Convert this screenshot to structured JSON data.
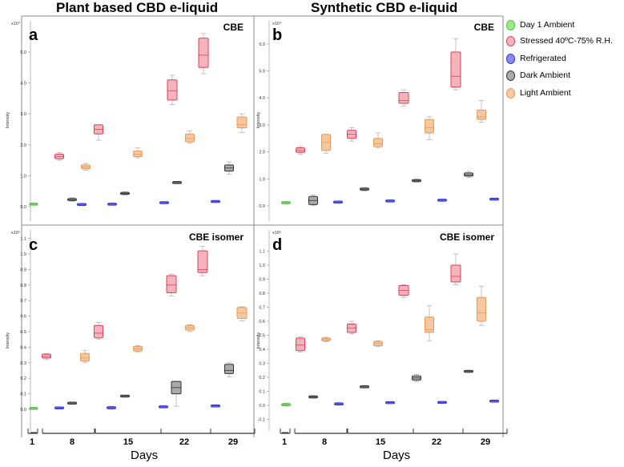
{
  "titles": {
    "left": "Plant based CBD e-liquid",
    "right": "Synthetic CBD e-liquid"
  },
  "legend": [
    {
      "label": "Day 1 Ambient",
      "color": "#9be88d",
      "edge": "#55bb44"
    },
    {
      "label": "Stressed 40ºC-75% R.H.",
      "color": "#f4b3bd",
      "edge": "#d94357"
    },
    {
      "label": "Refrigerated",
      "color": "#8a8cf0",
      "edge": "#3333dd"
    },
    {
      "label": "Dark Ambient",
      "color": "#aaaaaa",
      "edge": "#333333"
    },
    {
      "label": "Light Ambient",
      "color": "#f8c7a0",
      "edge": "#e59a5a"
    }
  ],
  "xaxis": {
    "label": "Days",
    "groups": [
      "1",
      "8",
      "15",
      "22",
      "29"
    ]
  },
  "chart_data": [
    {
      "type": "box",
      "panel": "a",
      "title": "CBE",
      "exponent": "x10⁴",
      "ylabel": "Intensity",
      "ylim": [
        -0.3,
        5.9
      ],
      "yticks": [
        0,
        1,
        2,
        3,
        4,
        5
      ],
      "ytick_labels": [
        "0.0",
        "1.0",
        "2.0",
        "3.0",
        "4.0",
        "5.0"
      ],
      "boxes": [
        {
          "day": "1",
          "series": "Day 1 Ambient",
          "whisker_low": 0.05,
          "q1": 0.07,
          "median": 0.08,
          "q3": 0.09,
          "whisker_high": 0.1
        },
        {
          "day": "8",
          "series": "Stressed 40ºC-75% R.H.",
          "whisker_low": 1.5,
          "q1": 1.55,
          "median": 1.62,
          "q3": 1.7,
          "whisker_high": 1.75
        },
        {
          "day": "8",
          "series": "Refrigerated",
          "whisker_low": 0.05,
          "q1": 0.06,
          "median": 0.07,
          "q3": 0.08,
          "whisker_high": 0.09
        },
        {
          "day": "8",
          "series": "Dark Ambient",
          "whisker_low": 0.17,
          "q1": 0.2,
          "median": 0.23,
          "q3": 0.26,
          "whisker_high": 0.29
        },
        {
          "day": "8",
          "series": "Light Ambient",
          "whisker_low": 1.18,
          "q1": 1.22,
          "median": 1.28,
          "q3": 1.35,
          "whisker_high": 1.4
        },
        {
          "day": "15",
          "series": "Stressed 40ºC-75% R.H.",
          "whisker_low": 2.15,
          "q1": 2.25,
          "median": 2.5,
          "q3": 2.55,
          "whisker_high": 2.6
        },
        {
          "day": "15",
          "series": "Refrigerated",
          "whisker_low": 0.06,
          "q1": 0.07,
          "median": 0.08,
          "q3": 0.09,
          "whisker_high": 0.1
        },
        {
          "day": "15",
          "series": "Dark Ambient",
          "whisker_low": 0.38,
          "q1": 0.4,
          "median": 0.43,
          "q3": 0.46,
          "whisker_high": 0.48
        },
        {
          "day": "15",
          "series": "Light Ambient",
          "whisker_low": 1.58,
          "q1": 1.62,
          "median": 1.7,
          "q3": 1.8,
          "whisker_high": 1.9
        },
        {
          "day": "22",
          "series": "Stressed 40ºC-75% R.H.",
          "whisker_low": 3.3,
          "q1": 3.45,
          "median": 3.75,
          "q3": 4.1,
          "whisker_high": 4.25
        },
        {
          "day": "22",
          "series": "Refrigerated",
          "whisker_low": 0.11,
          "q1": 0.12,
          "median": 0.13,
          "q3": 0.14,
          "whisker_high": 0.15
        },
        {
          "day": "22",
          "series": "Dark Ambient",
          "whisker_low": 0.74,
          "q1": 0.76,
          "median": 0.78,
          "q3": 0.8,
          "whisker_high": 0.82
        },
        {
          "day": "22",
          "series": "Light Ambient",
          "whisker_low": 2.05,
          "q1": 2.1,
          "median": 2.2,
          "q3": 2.35,
          "whisker_high": 2.45
        },
        {
          "day": "29",
          "series": "Stressed 40ºC-75% R.H.",
          "whisker_low": 4.3,
          "q1": 4.5,
          "median": 4.9,
          "q3": 5.45,
          "whisker_high": 5.6
        },
        {
          "day": "29",
          "series": "Refrigerated",
          "whisker_low": 0.15,
          "q1": 0.16,
          "median": 0.17,
          "q3": 0.18,
          "whisker_high": 0.19
        },
        {
          "day": "29",
          "series": "Dark Ambient",
          "whisker_low": 1.05,
          "q1": 1.15,
          "median": 1.25,
          "q3": 1.35,
          "whisker_high": 1.45
        },
        {
          "day": "29",
          "series": "Light Ambient",
          "whisker_low": 2.4,
          "q1": 2.55,
          "median": 2.65,
          "q3": 2.9,
          "whisker_high": 3.0
        }
      ]
    },
    {
      "type": "box",
      "panel": "b",
      "title": "CBE",
      "exponent": "x10⁴",
      "ylabel": "Intensity",
      "ylim": [
        -0.35,
        6.7
      ],
      "yticks": [
        0,
        1,
        2,
        3,
        4,
        5,
        6
      ],
      "ytick_labels": [
        "0.0",
        "1.0",
        "2.0",
        "3.0",
        "4.0",
        "5.0",
        "6.0"
      ],
      "boxes": [
        {
          "day": "1",
          "series": "Day 1 Ambient",
          "whisker_low": 0.08,
          "q1": 0.1,
          "median": 0.12,
          "q3": 0.14,
          "whisker_high": 0.16
        },
        {
          "day": "8",
          "series": "Stressed 40ºC-75% R.H.",
          "whisker_low": 1.9,
          "q1": 1.98,
          "median": 2.05,
          "q3": 2.15,
          "whisker_high": 2.2
        },
        {
          "day": "8",
          "series": "Dark Ambient",
          "whisker_low": 0.02,
          "q1": 0.05,
          "median": 0.2,
          "q3": 0.35,
          "whisker_high": 0.4
        },
        {
          "day": "8",
          "series": "Refrigerated",
          "whisker_low": 0.12,
          "q1": 0.13,
          "median": 0.14,
          "q3": 0.15,
          "whisker_high": 0.16
        },
        {
          "day": "8",
          "series": "Light Ambient",
          "whisker_low": 1.95,
          "q1": 2.0,
          "median": 2.35,
          "q3": 2.6,
          "whisker_high": 2.65
        },
        {
          "day": "15",
          "series": "Stressed 40ºC-75% R.H.",
          "whisker_low": 2.4,
          "q1": 2.5,
          "median": 2.65,
          "q3": 2.8,
          "whisker_high": 2.9
        },
        {
          "day": "15",
          "series": "Dark Ambient",
          "whisker_low": 0.55,
          "q1": 0.58,
          "median": 0.62,
          "q3": 0.65,
          "whisker_high": 0.68
        },
        {
          "day": "15",
          "series": "Refrigerated",
          "whisker_low": 0.16,
          "q1": 0.17,
          "median": 0.18,
          "q3": 0.19,
          "whisker_high": 0.2
        },
        {
          "day": "15",
          "series": "Light Ambient",
          "whisker_low": 2.15,
          "q1": 2.2,
          "median": 2.3,
          "q3": 2.5,
          "whisker_high": 2.7
        },
        {
          "day": "22",
          "series": "Stressed 40ºC-75% R.H.",
          "whisker_low": 3.7,
          "q1": 3.8,
          "median": 3.9,
          "q3": 4.2,
          "whisker_high": 4.3
        },
        {
          "day": "22",
          "series": "Dark Ambient",
          "whisker_low": 0.88,
          "q1": 0.9,
          "median": 0.93,
          "q3": 0.97,
          "whisker_high": 1.0
        },
        {
          "day": "22",
          "series": "Refrigerated",
          "whisker_low": 0.19,
          "q1": 0.2,
          "median": 0.21,
          "q3": 0.22,
          "whisker_high": 0.23
        },
        {
          "day": "22",
          "series": "Light Ambient",
          "whisker_low": 2.45,
          "q1": 2.7,
          "median": 2.9,
          "q3": 3.2,
          "whisker_high": 3.3
        },
        {
          "day": "29",
          "series": "Stressed 40ºC-75% R.H.",
          "whisker_low": 4.3,
          "q1": 4.4,
          "median": 4.8,
          "q3": 5.7,
          "whisker_high": 6.2
        },
        {
          "day": "29",
          "series": "Dark Ambient",
          "whisker_low": 1.05,
          "q1": 1.1,
          "median": 1.15,
          "q3": 1.22,
          "whisker_high": 1.28
        },
        {
          "day": "29",
          "series": "Refrigerated",
          "whisker_low": 0.23,
          "q1": 0.24,
          "median": 0.25,
          "q3": 0.26,
          "whisker_high": 0.27
        },
        {
          "day": "29",
          "series": "Light Ambient",
          "whisker_low": 3.1,
          "q1": 3.2,
          "median": 3.3,
          "q3": 3.55,
          "whisker_high": 3.9
        }
      ]
    },
    {
      "type": "box",
      "panel": "c",
      "title": "CBE isomer",
      "exponent": "x10⁵",
      "ylabel": "Intensity",
      "ylim": [
        -0.06,
        1.17
      ],
      "yticks": [
        0,
        0.1,
        0.2,
        0.3,
        0.4,
        0.5,
        0.6,
        0.7,
        0.8,
        0.9,
        1.0,
        1.1
      ],
      "ytick_labels": [
        "0.0",
        "0.1",
        "0.2",
        "0.3",
        "0.4",
        "0.5",
        "0.6",
        "0.7",
        "0.8",
        "0.9",
        "1.0",
        "1.1"
      ],
      "boxes": [
        {
          "day": "1",
          "series": "Day 1 Ambient",
          "whisker_low": 0.002,
          "q1": 0.004,
          "median": 0.006,
          "q3": 0.008,
          "whisker_high": 0.01
        },
        {
          "day": "8",
          "series": "Stressed 40ºC-75% R.H.",
          "whisker_low": 0.32,
          "q1": 0.33,
          "median": 0.34,
          "q3": 0.355,
          "whisker_high": 0.36
        },
        {
          "day": "8",
          "series": "Refrigerated",
          "whisker_low": 0.005,
          "q1": 0.007,
          "median": 0.009,
          "q3": 0.011,
          "whisker_high": 0.013
        },
        {
          "day": "8",
          "series": "Dark Ambient",
          "whisker_low": 0.035,
          "q1": 0.037,
          "median": 0.04,
          "q3": 0.043,
          "whisker_high": 0.045
        },
        {
          "day": "8",
          "series": "Light Ambient",
          "whisker_low": 0.3,
          "q1": 0.31,
          "median": 0.33,
          "q3": 0.36,
          "whisker_high": 0.38
        },
        {
          "day": "15",
          "series": "Stressed 40ºC-75% R.H.",
          "whisker_low": 0.45,
          "q1": 0.46,
          "median": 0.49,
          "q3": 0.54,
          "whisker_high": 0.56
        },
        {
          "day": "15",
          "series": "Refrigerated",
          "whisker_low": 0.0,
          "q1": 0.005,
          "median": 0.01,
          "q3": 0.015,
          "whisker_high": 0.02
        },
        {
          "day": "15",
          "series": "Dark Ambient",
          "whisker_low": 0.08,
          "q1": 0.082,
          "median": 0.085,
          "q3": 0.088,
          "whisker_high": 0.09
        },
        {
          "day": "15",
          "series": "Light Ambient",
          "whisker_low": 0.37,
          "q1": 0.375,
          "median": 0.39,
          "q3": 0.405,
          "whisker_high": 0.41
        },
        {
          "day": "22",
          "series": "Stressed 40ºC-75% R.H.",
          "whisker_low": 0.73,
          "q1": 0.75,
          "median": 0.8,
          "q3": 0.86,
          "whisker_high": 0.87
        },
        {
          "day": "22",
          "series": "Refrigerated",
          "whisker_low": 0.012,
          "q1": 0.014,
          "median": 0.016,
          "q3": 0.018,
          "whisker_high": 0.02
        },
        {
          "day": "22",
          "series": "Dark Ambient",
          "whisker_low": 0.02,
          "q1": 0.08,
          "median": 0.14,
          "q3": 0.16,
          "whisker_high": 0.18
        },
        {
          "day": "22",
          "series": "Light Ambient",
          "whisker_low": 0.5,
          "q1": 0.51,
          "median": 0.525,
          "q3": 0.54,
          "whisker_high": 0.545
        },
        {
          "day": "29",
          "series": "Stressed 40ºC-75% R.H.",
          "whisker_low": 0.86,
          "q1": 0.88,
          "median": 0.9,
          "q3": 1.02,
          "whisker_high": 1.05
        },
        {
          "day": "29",
          "series": "Refrigerated",
          "whisker_low": 0.019,
          "q1": 0.02,
          "median": 0.022,
          "q3": 0.024,
          "whisker_high": 0.025
        },
        {
          "day": "29",
          "series": "Dark Ambient",
          "whisker_low": 0.21,
          "q1": 0.23,
          "median": 0.25,
          "q3": 0.29,
          "whisker_high": 0.3
        },
        {
          "day": "29",
          "series": "Light Ambient",
          "whisker_low": 0.57,
          "q1": 0.58,
          "median": 0.62,
          "q3": 0.65,
          "whisker_high": 0.66
        }
      ]
    },
    {
      "type": "box",
      "panel": "d",
      "title": "CBE isomer",
      "exponent": "x10⁵",
      "ylabel": "Intensity",
      "ylim": [
        -0.14,
        1.2
      ],
      "yticks": [
        -0.1,
        0,
        0.1,
        0.2,
        0.3,
        0.4,
        0.5,
        0.6,
        0.7,
        0.8,
        0.9,
        1.0,
        1.1
      ],
      "ytick_labels": [
        "-0.1",
        "0.0",
        "0.1",
        "0.2",
        "0.3",
        "0.4",
        "0.5",
        "0.6",
        "0.7",
        "0.8",
        "0.9",
        "1.0",
        "1.1"
      ],
      "boxes": [
        {
          "day": "1",
          "series": "Day 1 Ambient",
          "whisker_low": -0.005,
          "q1": 0.0,
          "median": 0.005,
          "q3": 0.01,
          "whisker_high": 0.015
        },
        {
          "day": "8",
          "series": "Stressed 40ºC-75% R.H.",
          "whisker_low": 0.38,
          "q1": 0.39,
          "median": 0.43,
          "q3": 0.48,
          "whisker_high": 0.49
        },
        {
          "day": "8",
          "series": "Dark Ambient",
          "whisker_low": 0.05,
          "q1": 0.055,
          "median": 0.06,
          "q3": 0.065,
          "whisker_high": 0.07
        },
        {
          "day": "8",
          "series": "Light Ambient",
          "whisker_low": 0.455,
          "q1": 0.46,
          "median": 0.47,
          "q3": 0.48,
          "whisker_high": 0.485
        },
        {
          "day": "8",
          "series": "Refrigerated",
          "whisker_low": 0.0,
          "q1": 0.005,
          "median": 0.01,
          "q3": 0.015,
          "whisker_high": 0.02
        },
        {
          "day": "15",
          "series": "Stressed 40ºC-75% R.H.",
          "whisker_low": 0.51,
          "q1": 0.52,
          "median": 0.55,
          "q3": 0.58,
          "whisker_high": 0.6
        },
        {
          "day": "15",
          "series": "Dark Ambient",
          "whisker_low": 0.125,
          "q1": 0.128,
          "median": 0.132,
          "q3": 0.136,
          "whisker_high": 0.14
        },
        {
          "day": "15",
          "series": "Light Ambient",
          "whisker_low": 0.42,
          "q1": 0.425,
          "median": 0.44,
          "q3": 0.455,
          "whisker_high": 0.46
        },
        {
          "day": "15",
          "series": "Refrigerated",
          "whisker_low": 0.015,
          "q1": 0.017,
          "median": 0.019,
          "q3": 0.021,
          "whisker_high": 0.023
        },
        {
          "day": "22",
          "series": "Stressed 40ºC-75% R.H.",
          "whisker_low": 0.77,
          "q1": 0.78,
          "median": 0.82,
          "q3": 0.85,
          "whisker_high": 0.86
        },
        {
          "day": "22",
          "series": "Dark Ambient",
          "whisker_low": 0.17,
          "q1": 0.18,
          "median": 0.195,
          "q3": 0.21,
          "whisker_high": 0.22
        },
        {
          "day": "22",
          "series": "Light Ambient",
          "whisker_low": 0.46,
          "q1": 0.52,
          "median": 0.54,
          "q3": 0.63,
          "whisker_high": 0.71
        },
        {
          "day": "22",
          "series": "Refrigerated",
          "whisker_low": 0.017,
          "q1": 0.019,
          "median": 0.021,
          "q3": 0.023,
          "whisker_high": 0.025
        },
        {
          "day": "29",
          "series": "Stressed 40ºC-75% R.H.",
          "whisker_low": 0.86,
          "q1": 0.88,
          "median": 0.92,
          "q3": 1.0,
          "whisker_high": 1.08
        },
        {
          "day": "29",
          "series": "Dark Ambient",
          "whisker_low": 0.235,
          "q1": 0.238,
          "median": 0.242,
          "q3": 0.246,
          "whisker_high": 0.25
        },
        {
          "day": "29",
          "series": "Light Ambient",
          "whisker_low": 0.57,
          "q1": 0.6,
          "median": 0.66,
          "q3": 0.77,
          "whisker_high": 0.85
        },
        {
          "day": "29",
          "series": "Refrigerated",
          "whisker_low": 0.026,
          "q1": 0.028,
          "median": 0.03,
          "q3": 0.032,
          "whisker_high": 0.034
        }
      ]
    }
  ]
}
